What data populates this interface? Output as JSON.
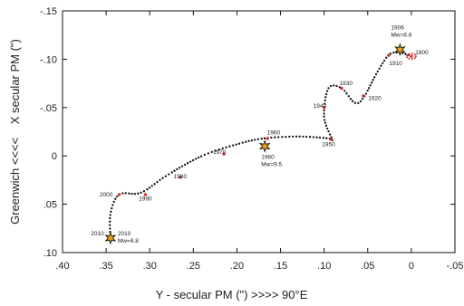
{
  "chart_data": {
    "type": "scatter",
    "xlabel": "Y - secular PM (\") >>>> 90°E",
    "ylabel": "Greenwich <<<<    X secular PM (\")",
    "xlim": [
      0.4,
      -0.05
    ],
    "ylim": [
      0.1,
      -0.15
    ],
    "xticks": [
      0.4,
      0.35,
      0.3,
      0.25,
      0.2,
      0.15,
      0.1,
      0.05,
      0.0,
      -0.05
    ],
    "xtick_labels": [
      ".40",
      ".35",
      ".30",
      ".25",
      ".20",
      ".15",
      ".10",
      ".05",
      "0",
      "-.05"
    ],
    "yticks": [
      -0.15,
      -0.1,
      -0.05,
      0.0,
      0.05,
      0.1
    ],
    "ytick_labels": [
      "-.15",
      "-.10",
      "-.05",
      "0",
      ".05",
      ".10"
    ],
    "path_control_points": [
      {
        "x": 0.0,
        "y": -0.103
      },
      {
        "x": 0.01,
        "y": -0.106
      },
      {
        "x": 0.025,
        "y": -0.105
      },
      {
        "x": 0.04,
        "y": -0.085
      },
      {
        "x": 0.055,
        "y": -0.06
      },
      {
        "x": 0.065,
        "y": -0.055
      },
      {
        "x": 0.08,
        "y": -0.07
      },
      {
        "x": 0.095,
        "y": -0.07
      },
      {
        "x": 0.1,
        "y": -0.04
      },
      {
        "x": 0.09,
        "y": -0.015
      },
      {
        "x": 0.095,
        "y": -0.018
      },
      {
        "x": 0.13,
        "y": -0.02
      },
      {
        "x": 0.17,
        "y": -0.018
      },
      {
        "x": 0.2,
        "y": -0.012
      },
      {
        "x": 0.24,
        "y": 0.0
      },
      {
        "x": 0.28,
        "y": 0.02
      },
      {
        "x": 0.31,
        "y": 0.038
      },
      {
        "x": 0.335,
        "y": 0.04
      },
      {
        "x": 0.345,
        "y": 0.06
      },
      {
        "x": 0.345,
        "y": 0.085
      }
    ],
    "year_markers": [
      {
        "year": 1900,
        "x": 0.0,
        "y": -0.103
      },
      {
        "year": 1906,
        "x": 0.012,
        "y": -0.11
      },
      {
        "year": 1910,
        "x": 0.026,
        "y": -0.104
      },
      {
        "year": 1920,
        "x": 0.055,
        "y": -0.062
      },
      {
        "year": 1930,
        "x": 0.08,
        "y": -0.07
      },
      {
        "year": 1940,
        "x": 0.1,
        "y": -0.05
      },
      {
        "year": 1950,
        "x": 0.092,
        "y": -0.017
      },
      {
        "year": 1960,
        "x": 0.165,
        "y": -0.018
      },
      {
        "year": 1970,
        "x": 0.215,
        "y": -0.002
      },
      {
        "year": 1980,
        "x": 0.265,
        "y": 0.022
      },
      {
        "year": 1990,
        "x": 0.305,
        "y": 0.04
      },
      {
        "year": 2000,
        "x": 0.335,
        "y": 0.04
      },
      {
        "year": 2010,
        "x": 0.345,
        "y": 0.085
      }
    ],
    "earthquakes": [
      {
        "x": 0.013,
        "y": -0.11,
        "lines": [
          "1906",
          "Mw=8.8"
        ],
        "anchor": "above"
      },
      {
        "x": 0.168,
        "y": -0.01,
        "lines": [
          "1960",
          "Mw=9.5"
        ],
        "anchor": "below"
      },
      {
        "x": 0.345,
        "y": 0.085,
        "lines": [
          "2010",
          "Mw=8.8"
        ],
        "anchor": "right"
      }
    ],
    "year_labels": [
      {
        "text": "1900",
        "x": -0.012,
        "y": -0.105
      },
      {
        "text": "1910",
        "x": 0.018,
        "y": -0.094
      },
      {
        "text": "1920",
        "x": 0.042,
        "y": -0.058
      },
      {
        "text": "1930",
        "x": 0.075,
        "y": -0.073
      },
      {
        "text": "1940",
        "x": 0.105,
        "y": -0.05
      },
      {
        "text": "1950",
        "x": 0.095,
        "y": -0.01
      },
      {
        "text": "1960",
        "x": 0.158,
        "y": -0.022
      },
      {
        "text": "1970",
        "x": 0.22,
        "y": -0.002
      },
      {
        "text": "1980",
        "x": 0.265,
        "y": 0.023
      },
      {
        "text": "1990",
        "x": 0.305,
        "y": 0.046
      },
      {
        "text": "2000",
        "x": 0.35,
        "y": 0.042
      },
      {
        "text": "2010",
        "x": 0.36,
        "y": 0.082
      }
    ],
    "colors": {
      "path": "#111111",
      "year_dot": "#d42a2a",
      "star_fill": "#e9a21a",
      "star_stroke": "#000000"
    }
  }
}
